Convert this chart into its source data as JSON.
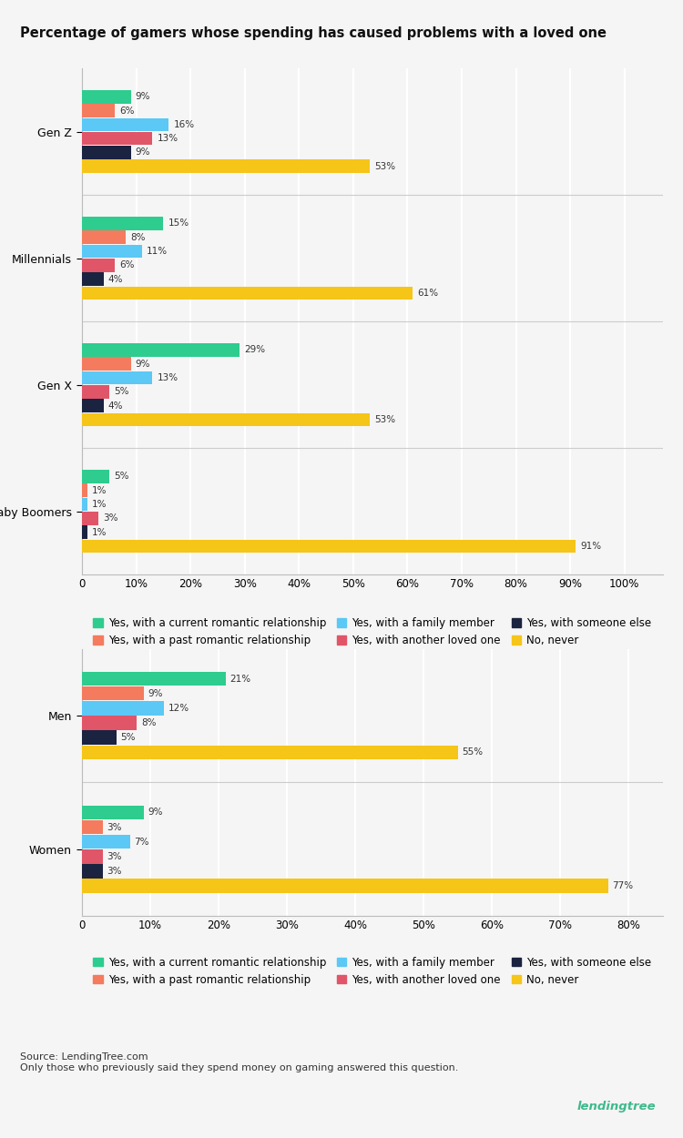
{
  "title": "Percentage of gamers whose spending has caused problems with a loved one",
  "chart1": {
    "groups": [
      "Gen Z",
      "Millennials",
      "Gen X",
      "Baby Boomers"
    ],
    "series": {
      "current_romantic": [
        9,
        15,
        29,
        5
      ],
      "past_romantic": [
        6,
        8,
        9,
        1
      ],
      "family_member": [
        16,
        11,
        13,
        1
      ],
      "another_loved": [
        13,
        6,
        5,
        3
      ],
      "someone_else": [
        9,
        4,
        4,
        1
      ],
      "no_never": [
        53,
        61,
        53,
        91
      ]
    },
    "xticks": [
      0,
      10,
      20,
      30,
      40,
      50,
      60,
      70,
      80,
      90,
      100
    ],
    "xticklabels": [
      "0",
      "10%",
      "20%",
      "30%",
      "40%",
      "50%",
      "60%",
      "70%",
      "80%",
      "90%",
      "100%"
    ],
    "xlim": [
      0,
      107
    ]
  },
  "chart2": {
    "groups": [
      "Men",
      "Women"
    ],
    "series": {
      "current_romantic": [
        21,
        9
      ],
      "past_romantic": [
        9,
        3
      ],
      "family_member": [
        12,
        7
      ],
      "another_loved": [
        8,
        3
      ],
      "someone_else": [
        5,
        3
      ],
      "no_never": [
        55,
        77
      ]
    },
    "xticks": [
      0,
      10,
      20,
      30,
      40,
      50,
      60,
      70,
      80
    ],
    "xticklabels": [
      "0",
      "10%",
      "20%",
      "30%",
      "40%",
      "50%",
      "60%",
      "70%",
      "80%"
    ],
    "xlim": [
      0,
      85
    ]
  },
  "colors": {
    "current_romantic": "#2ecc8e",
    "past_romantic": "#f47b5e",
    "family_member": "#5bc8f5",
    "another_loved": "#e05568",
    "someone_else": "#1a2340",
    "no_never": "#f5c518"
  },
  "legend_labels": {
    "current_romantic": "Yes, with a current romantic relationship",
    "past_romantic": "Yes, with a past romantic relationship",
    "family_member": "Yes, with a family member",
    "another_loved": "Yes, with another loved one",
    "someone_else": "Yes, with someone else",
    "no_never": "No, never"
  },
  "source_text": "Source: LendingTree.com\nOnly those who previously said they spend money on gaming answered this question.",
  "background_color": "#f5f5f5",
  "grid_color": "#ffffff",
  "text_color": "#333333"
}
